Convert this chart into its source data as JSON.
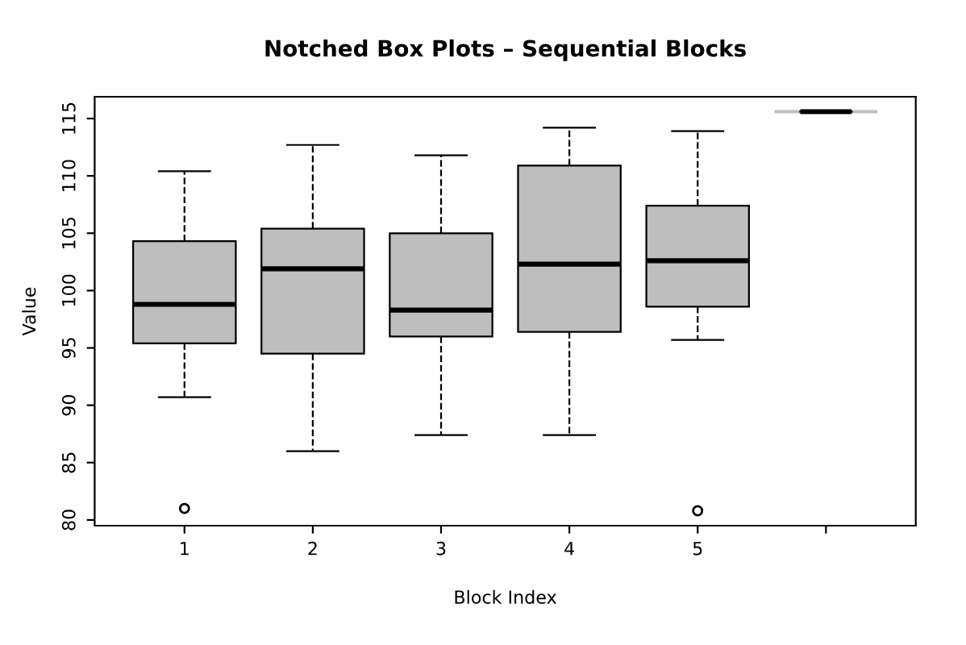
{
  "chart_data": {
    "type": "box",
    "title": "Notched Box Plots – Sequential Blocks",
    "xlabel": "Block Index",
    "ylabel": "Value",
    "categories": [
      "1",
      "2",
      "3",
      "4",
      "5",
      null
    ],
    "series": [
      {
        "color": "#bebebe",
        "boxes": [
          {
            "low": 90.7,
            "q1": 95.4,
            "median": 98.8,
            "q3": 104.3,
            "high": 110.4,
            "outliers": [
              81.0
            ]
          },
          {
            "low": 86.0,
            "q1": 94.5,
            "median": 101.9,
            "q3": 105.4,
            "high": 112.7
          },
          {
            "low": 87.4,
            "q1": 96.0,
            "median": 98.3,
            "q3": 105.0,
            "high": 111.8
          },
          {
            "low": 87.4,
            "q1": 96.4,
            "median": 102.3,
            "q3": 110.9,
            "high": 114.2
          },
          {
            "low": 95.7,
            "q1": 98.6,
            "median": 102.6,
            "q3": 107.4,
            "high": 113.9,
            "outliers": [
              80.8
            ]
          },
          {
            "low": 115.6,
            "q1": 115.6,
            "median": 115.6,
            "q3": 115.6,
            "high": 115.6
          }
        ]
      }
    ],
    "ylim": [
      79.5,
      116.9
    ],
    "yticks": [
      80,
      85,
      90,
      95,
      100,
      105,
      110,
      115
    ],
    "grid": false,
    "legend": false
  }
}
